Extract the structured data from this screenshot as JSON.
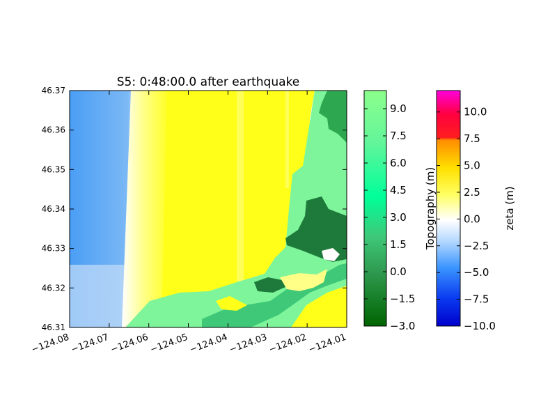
{
  "chart_data": {
    "type": "heatmap",
    "title": "S5: 0:48:00.0 after earthquake",
    "xlabel": "",
    "ylabel": "",
    "xlim": [
      -124.08,
      -124.01
    ],
    "ylim": [
      46.31,
      46.37
    ],
    "x_ticks": [
      -124.08,
      -124.07,
      -124.06,
      -124.05,
      -124.04,
      -124.03,
      -124.02,
      -124.01
    ],
    "x_tick_labels": [
      "−124.08",
      "−124.07",
      "−124.06",
      "−124.05",
      "−124.04",
      "−124.03",
      "−124.02",
      "−124.01"
    ],
    "y_ticks": [
      46.31,
      46.32,
      46.33,
      46.34,
      46.35,
      46.36,
      46.37
    ],
    "y_tick_labels": [
      "46.31",
      "46.32",
      "46.33",
      "46.34",
      "46.35",
      "46.36",
      "46.37"
    ],
    "colorbars": [
      {
        "label": "Topography (m)",
        "range": [
          -3.0,
          10.0
        ],
        "ticks": [
          -3.0,
          -1.5,
          0.0,
          1.5,
          3.0,
          4.5,
          6.0,
          7.5,
          9.0
        ],
        "tick_labels": [
          "−3.0",
          "−1.5",
          "0.0",
          "1.5",
          "3.0",
          "4.5",
          "6.0",
          "7.5",
          "9.0"
        ],
        "colors": [
          "#006400",
          "#2e9a50",
          "#3fc878",
          "#00ff99",
          "#7dff90",
          "#a0f4a0"
        ]
      },
      {
        "label": "zeta (m)",
        "range": [
          -10.0,
          12.0
        ],
        "ticks": [
          -10.0,
          -7.5,
          -5.0,
          -2.5,
          0.0,
          2.5,
          5.0,
          7.5,
          10.0
        ],
        "tick_labels": [
          "−10.0",
          "−7.5",
          "−5.0",
          "−2.5",
          "0.0",
          "2.5",
          "5.0",
          "7.5",
          "10.0"
        ],
        "colors": [
          "#0000cc",
          "#1e64ff",
          "#5ab4ff",
          "#ffffff",
          "#ffff00",
          "#ff8c00",
          "#ff0033",
          "#ff00cc"
        ]
      }
    ]
  }
}
